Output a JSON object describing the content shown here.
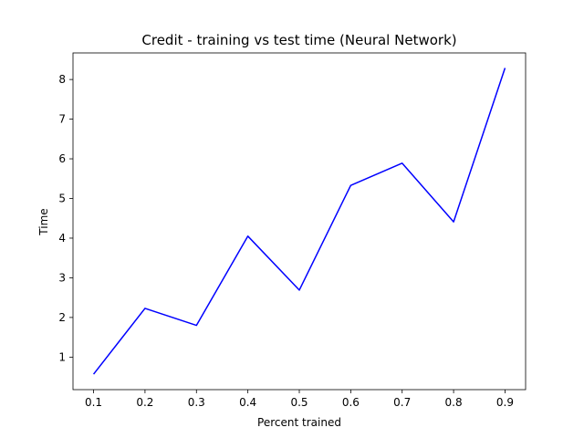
{
  "chart_data": {
    "type": "line",
    "title": "Credit - training vs test time (Neural Network)",
    "xlabel": "Percent trained",
    "ylabel": "Time",
    "x": [
      0.1,
      0.2,
      0.3,
      0.4,
      0.5,
      0.6,
      0.7,
      0.8,
      0.9
    ],
    "series": [
      {
        "values": [
          0.57,
          2.23,
          1.8,
          4.05,
          2.69,
          5.33,
          5.89,
          4.41,
          8.29
        ],
        "color": "#0000ff"
      }
    ],
    "xticks": [
      "0.1",
      "0.2",
      "0.3",
      "0.4",
      "0.5",
      "0.6",
      "0.7",
      "0.8",
      "0.9"
    ],
    "yticks": [
      "1",
      "2",
      "3",
      "4",
      "5",
      "6",
      "7",
      "8"
    ],
    "xlim": [
      0.06,
      0.94
    ],
    "ylim": [
      0.18,
      8.67
    ],
    "grid": false
  }
}
